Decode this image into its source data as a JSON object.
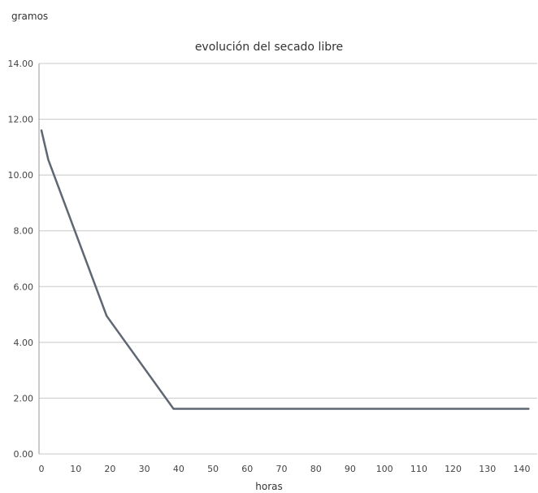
{
  "chart_data": {
    "type": "line",
    "title": "evolución del secado libre",
    "xlabel": "horas",
    "ylabel": "gramos",
    "xlim": [
      0,
      140
    ],
    "ylim": [
      0,
      14
    ],
    "xticks": [
      "0",
      "10",
      "20",
      "30",
      "40",
      "50",
      "60",
      "70",
      "80",
      "90",
      "100",
      "110",
      "120",
      "130",
      "140"
    ],
    "yticks": [
      "0.00",
      "2.00",
      "4.00",
      "6.00",
      "8.00",
      "10.00",
      "12.00",
      "14.00"
    ],
    "grid": "horizontal",
    "series": [
      {
        "x": [
          0,
          2,
          19,
          38.5,
          142
        ],
        "y": [
          11.6,
          10.55,
          4.95,
          1.62,
          1.62
        ]
      }
    ],
    "colors": {
      "line": "#5f6773",
      "grid": "#c8c8c8",
      "axis": "#9a9a9a"
    }
  }
}
